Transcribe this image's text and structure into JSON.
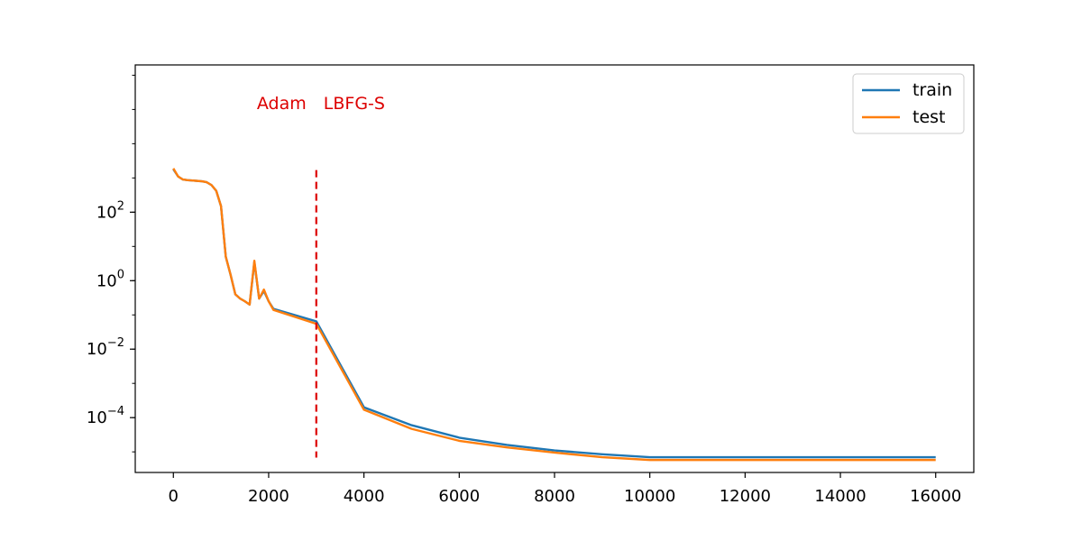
{
  "chart_data": {
    "type": "line",
    "title": "",
    "xlabel": "",
    "ylabel": "",
    "y_scale": "log",
    "xlim": [
      -800,
      16800
    ],
    "ylim": [
      2.5e-06,
      2000000
    ],
    "grid": false,
    "legend_position": "top-right",
    "x_ticks": [
      0,
      2000,
      4000,
      6000,
      8000,
      10000,
      12000,
      14000,
      16000
    ],
    "x_tick_labels": [
      "0",
      "2000",
      "4000",
      "6000",
      "8000",
      "10000",
      "12000",
      "14000",
      "16000"
    ],
    "y_ticks": [
      100,
      1,
      0.01,
      0.0001
    ],
    "y_tick_labels": [
      {
        "base": "10",
        "exp": "2"
      },
      {
        "base": "10",
        "exp": "0"
      },
      {
        "base": "10",
        "exp": "−2"
      },
      {
        "base": "10",
        "exp": "−4"
      }
    ],
    "series": [
      {
        "name": "train",
        "color": "#1f77b4",
        "x": [
          0,
          100,
          200,
          300,
          400,
          500,
          600,
          700,
          800,
          900,
          1000,
          1100,
          1200,
          1300,
          1400,
          1500,
          1600,
          1700,
          1800,
          1900,
          2000,
          2100,
          3000,
          4000,
          5000,
          6000,
          7000,
          8000,
          9000,
          10000,
          11000,
          12000,
          13000,
          14000,
          15000,
          16000
        ],
        "y": [
          1800,
          1100,
          900,
          860,
          840,
          820,
          800,
          750,
          620,
          420,
          150,
          5,
          1.5,
          0.4,
          0.3,
          0.25,
          0.2,
          3.5,
          0.3,
          0.5,
          0.25,
          0.15,
          0.065,
          0.0002,
          6e-05,
          2.6e-05,
          1.6e-05,
          1.1e-05,
          8.5e-06,
          7e-06,
          7e-06,
          7e-06,
          7e-06,
          7e-06,
          7e-06,
          7e-06
        ]
      },
      {
        "name": "test",
        "color": "#ff7f0e",
        "x": [
          0,
          100,
          200,
          300,
          400,
          500,
          600,
          700,
          800,
          900,
          1000,
          1100,
          1200,
          1300,
          1400,
          1500,
          1600,
          1700,
          1800,
          1900,
          2000,
          2100,
          3000,
          4000,
          5000,
          6000,
          7000,
          8000,
          9000,
          10000,
          11000,
          12000,
          13000,
          14000,
          15000,
          16000
        ],
        "y": [
          1900,
          1100,
          900,
          860,
          840,
          820,
          800,
          750,
          620,
          420,
          150,
          5,
          1.5,
          0.4,
          0.3,
          0.25,
          0.2,
          3.8,
          0.3,
          0.55,
          0.25,
          0.14,
          0.055,
          0.00017,
          4.7e-05,
          2.1e-05,
          1.35e-05,
          9.5e-06,
          7e-06,
          5.8e-06,
          5.8e-06,
          5.8e-06,
          5.8e-06,
          5.8e-06,
          5.8e-06,
          5.8e-06
        ]
      }
    ],
    "vline": {
      "x": 3000,
      "y_from": 6.8e-06,
      "y_to": 1700,
      "color": "#dd0000",
      "style": "dashed"
    },
    "annotations": [
      {
        "text": "Adam",
        "color": "#dd0000"
      },
      {
        "text": "LBFG-S",
        "color": "#dd0000"
      }
    ]
  }
}
